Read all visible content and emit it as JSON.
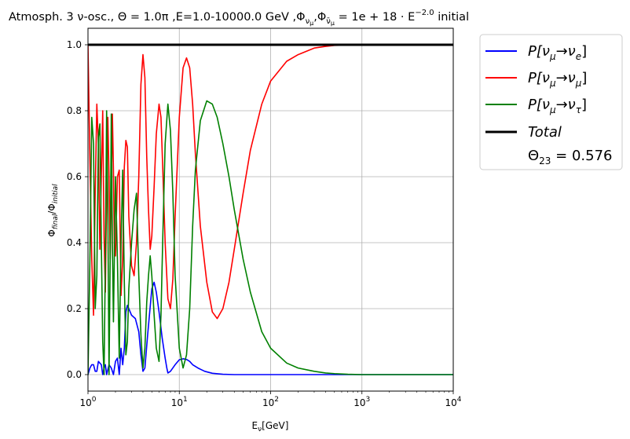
{
  "chart_data": {
    "type": "line",
    "title": {
      "main": "Atmosph. 3 ν-osc., Θ = 1.0π ,E=1.0-10000.0 GeV  ,Φ",
      "sub1": "ν",
      "sub1b": "μ",
      "comma": ",Φ",
      "sub2": "ν̄",
      "sub2b": "μ",
      "eq": " = 1e + 18 · E",
      "sup": "−2.0",
      "tail": " initial"
    },
    "xlabel": {
      "base": "E",
      "sub": "ν",
      "rest": "[GeV]"
    },
    "ylabel": {
      "base": "Φ",
      "sub1": "final",
      "mid": "/Φ",
      "sub2": "initial"
    },
    "x_scale": "log",
    "xlim": [
      1,
      10000
    ],
    "ylim": [
      -0.05,
      1.05
    ],
    "x_ticks": [
      {
        "value": 1,
        "base": "10",
        "exp": "0"
      },
      {
        "value": 10,
        "base": "10",
        "exp": "1"
      },
      {
        "value": 100,
        "base": "10",
        "exp": "2"
      },
      {
        "value": 1000,
        "base": "10",
        "exp": "3"
      },
      {
        "value": 10000,
        "base": "10",
        "exp": "4"
      }
    ],
    "y_ticks": [
      "0.0",
      "0.2",
      "0.4",
      "0.6",
      "0.8",
      "1.0"
    ],
    "grid": true,
    "legend_position": "outside-right",
    "legend": [
      {
        "pre": "P[ν",
        "sub1": "μ",
        "arrow": "→ν",
        "sub2": "e",
        "post": "]",
        "color": "#0000ff"
      },
      {
        "pre": "P[ν",
        "sub1": "μ",
        "arrow": "→ν",
        "sub2": "μ",
        "post": "]",
        "color": "#ff0000"
      },
      {
        "pre": "P[ν",
        "sub1": "μ",
        "arrow": "→ν",
        "sub2": "τ",
        "post": "]",
        "color": "#008000"
      },
      {
        "pre": "Total",
        "sub1": "",
        "arrow": "",
        "sub2": "",
        "post": "",
        "color": "#000000"
      },
      {
        "pre": "Θ",
        "sub1": "23",
        "arrow": " = 0.576",
        "sub2": "",
        "post": "",
        "color": ""
      }
    ],
    "series": [
      {
        "color": "#0000ff",
        "x": [
          1.0,
          1.05,
          1.1,
          1.15,
          1.2,
          1.25,
          1.3,
          1.4,
          1.45,
          1.5,
          1.55,
          1.6,
          1.7,
          1.8,
          1.9,
          2.0,
          2.1,
          2.2,
          2.3,
          2.4,
          2.5,
          2.6,
          2.7,
          2.8,
          3.0,
          3.3,
          3.6,
          3.8,
          4.0,
          4.2,
          4.5,
          5.0,
          5.3,
          5.6,
          6.0,
          6.5,
          7.0,
          7.3,
          7.5,
          8.0,
          9.0,
          10,
          11,
          12,
          13,
          14,
          16,
          19,
          23,
          30,
          40,
          60,
          100,
          1000,
          10000
        ],
        "y": [
          0.0,
          0.02,
          0.03,
          0.03,
          0.01,
          0.01,
          0.04,
          0.03,
          0.0,
          0.02,
          0.03,
          0.0,
          0.03,
          0.02,
          0.0,
          0.04,
          0.05,
          0.0,
          0.08,
          0.03,
          0.08,
          0.19,
          0.21,
          0.2,
          0.18,
          0.17,
          0.13,
          0.06,
          0.01,
          0.02,
          0.12,
          0.26,
          0.28,
          0.25,
          0.19,
          0.11,
          0.05,
          0.02,
          0.005,
          0.01,
          0.03,
          0.045,
          0.048,
          0.046,
          0.04,
          0.03,
          0.02,
          0.01,
          0.004,
          0.001,
          0.0,
          0.0,
          0.0,
          0.0,
          0.0
        ]
      },
      {
        "color": "#ff0000",
        "x": [
          1.0,
          1.05,
          1.1,
          1.15,
          1.2,
          1.25,
          1.3,
          1.35,
          1.4,
          1.45,
          1.5,
          1.55,
          1.6,
          1.65,
          1.7,
          1.75,
          1.8,
          1.85,
          1.9,
          1.95,
          2.0,
          2.1,
          2.2,
          2.3,
          2.4,
          2.5,
          2.6,
          2.7,
          2.8,
          3.0,
          3.2,
          3.4,
          3.6,
          3.8,
          4.0,
          4.2,
          4.4,
          4.6,
          4.8,
          5.0,
          5.3,
          5.6,
          6.0,
          6.3,
          6.6,
          7.0,
          7.5,
          8.0,
          8.5,
          9.0,
          10,
          11,
          12,
          13,
          14,
          15,
          17,
          20,
          23,
          26,
          30,
          35,
          40,
          50,
          60,
          80,
          100,
          150,
          200,
          300,
          400,
          500,
          700,
          1000,
          10000
        ],
        "y": [
          1.0,
          0.65,
          0.35,
          0.18,
          0.55,
          0.82,
          0.7,
          0.38,
          0.6,
          0.8,
          0.42,
          0.25,
          0.55,
          0.78,
          0.6,
          0.35,
          0.55,
          0.79,
          0.62,
          0.36,
          0.36,
          0.6,
          0.62,
          0.24,
          0.35,
          0.63,
          0.71,
          0.69,
          0.48,
          0.33,
          0.3,
          0.4,
          0.6,
          0.88,
          0.97,
          0.9,
          0.66,
          0.5,
          0.38,
          0.42,
          0.57,
          0.73,
          0.82,
          0.78,
          0.62,
          0.4,
          0.23,
          0.2,
          0.29,
          0.48,
          0.78,
          0.93,
          0.96,
          0.93,
          0.82,
          0.67,
          0.45,
          0.28,
          0.19,
          0.17,
          0.2,
          0.28,
          0.38,
          0.55,
          0.68,
          0.82,
          0.89,
          0.95,
          0.97,
          0.99,
          0.995,
          0.998,
          0.999,
          1.0,
          1.0
        ]
      },
      {
        "color": "#008000",
        "x": [
          1.0,
          1.05,
          1.1,
          1.15,
          1.2,
          1.25,
          1.3,
          1.35,
          1.4,
          1.45,
          1.5,
          1.55,
          1.6,
          1.65,
          1.7,
          1.75,
          1.8,
          1.85,
          1.9,
          1.95,
          2.0,
          2.1,
          2.2,
          2.3,
          2.4,
          2.5,
          2.6,
          2.7,
          2.8,
          3.0,
          3.2,
          3.4,
          3.6,
          3.8,
          4.0,
          4.2,
          4.4,
          4.6,
          4.8,
          5.0,
          5.3,
          5.6,
          6.0,
          6.3,
          6.6,
          7.0,
          7.5,
          8.0,
          8.5,
          9.0,
          10,
          11,
          12,
          13,
          14,
          15,
          17,
          20,
          23,
          26,
          30,
          35,
          40,
          50,
          60,
          80,
          100,
          150,
          200,
          300,
          400,
          500,
          700,
          1000,
          10000
        ],
        "y": [
          0.0,
          0.35,
          0.78,
          0.7,
          0.2,
          0.3,
          0.72,
          0.76,
          0.4,
          0.1,
          0.0,
          0.35,
          0.8,
          0.5,
          0.0,
          0.35,
          0.79,
          0.4,
          0.16,
          0.39,
          0.6,
          0.35,
          0.05,
          0.4,
          0.62,
          0.28,
          0.06,
          0.1,
          0.26,
          0.4,
          0.5,
          0.55,
          0.3,
          0.12,
          0.02,
          0.08,
          0.22,
          0.3,
          0.36,
          0.3,
          0.18,
          0.08,
          0.04,
          0.18,
          0.42,
          0.7,
          0.82,
          0.74,
          0.55,
          0.3,
          0.08,
          0.02,
          0.06,
          0.2,
          0.45,
          0.62,
          0.77,
          0.83,
          0.82,
          0.78,
          0.7,
          0.6,
          0.5,
          0.35,
          0.25,
          0.13,
          0.08,
          0.035,
          0.02,
          0.01,
          0.005,
          0.003,
          0.001,
          0.0,
          0.0
        ]
      },
      {
        "color": "#000000",
        "x": [
          1,
          10000
        ],
        "y": [
          1.0,
          1.0
        ]
      }
    ]
  }
}
